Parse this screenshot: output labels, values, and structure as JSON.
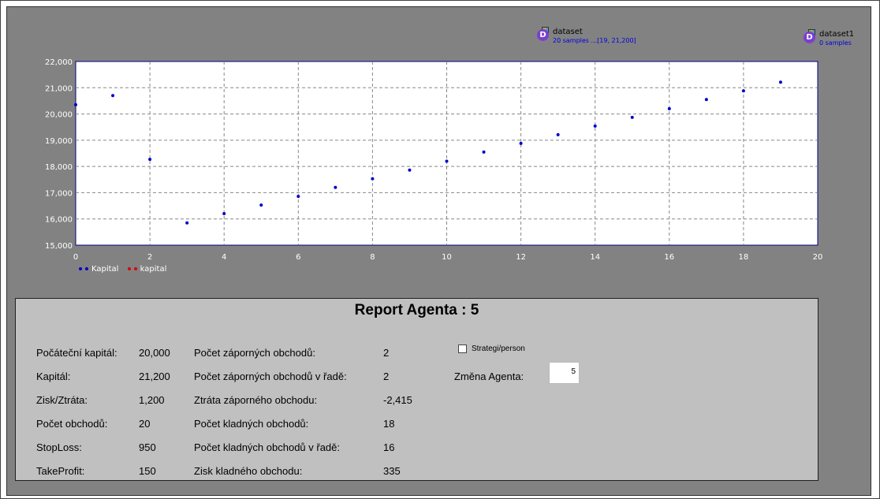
{
  "datasets": [
    {
      "icon": "dataset-icon",
      "name": "dataset",
      "info": "20 samples ...[19, 21,200]"
    },
    {
      "icon": "dataset-icon",
      "name": "dataset1",
      "info": "0 samples"
    }
  ],
  "chart_data": {
    "type": "scatter",
    "xlim": [
      0,
      20
    ],
    "ylim": [
      15000,
      22000
    ],
    "x_ticks": [
      "0",
      "2",
      "4",
      "6",
      "8",
      "10",
      "12",
      "14",
      "16",
      "18",
      "20"
    ],
    "y_ticks": [
      "15,000",
      "16,000",
      "17,000",
      "18,000",
      "19,000",
      "20,000",
      "21,000",
      "22,000"
    ],
    "grid": true,
    "legend_position": "bottom-left",
    "series": [
      {
        "name": "Kapital",
        "color": "#0000cc",
        "x": [
          0,
          1,
          2,
          3,
          4,
          5,
          6,
          7,
          8,
          9,
          10,
          11,
          12,
          13,
          14,
          15,
          16,
          17,
          18,
          19
        ],
        "y": [
          20350,
          20700,
          18270,
          15850,
          16200,
          16530,
          16860,
          17200,
          17530,
          17860,
          18200,
          18550,
          18880,
          19210,
          19540,
          19870,
          20200,
          20550,
          20880,
          21210
        ]
      },
      {
        "name": "kapital",
        "color": "#e00000",
        "x": [],
        "y": []
      }
    ]
  },
  "report": {
    "title": "Report Agenta : 5",
    "col1_labels": [
      "Počáteční kapitál:",
      "Kapitál:",
      "Zisk/Ztráta:",
      "Počet obchodů:",
      "StopLoss:",
      "TakeProfit:"
    ],
    "col1_values": [
      "20,000",
      "21,200",
      "1,200",
      "20",
      "950",
      "150"
    ],
    "col2_labels": [
      "Počet záporných obchodů:",
      "Počet záporných obchodů v řadě:",
      "Ztráta záporného obchodu:",
      "Počet kladných obchodů:",
      "Počet kladných obchodů v řadě:",
      "Zisk kladného obchodu:"
    ],
    "col2_values": [
      "2",
      "2",
      "-2,415",
      "18",
      "16",
      "335"
    ],
    "checkbox_label": "Strategi/person",
    "checkbox_checked": false,
    "agent_change_label": "Změna Agenta:",
    "agent_change_value": "5"
  }
}
